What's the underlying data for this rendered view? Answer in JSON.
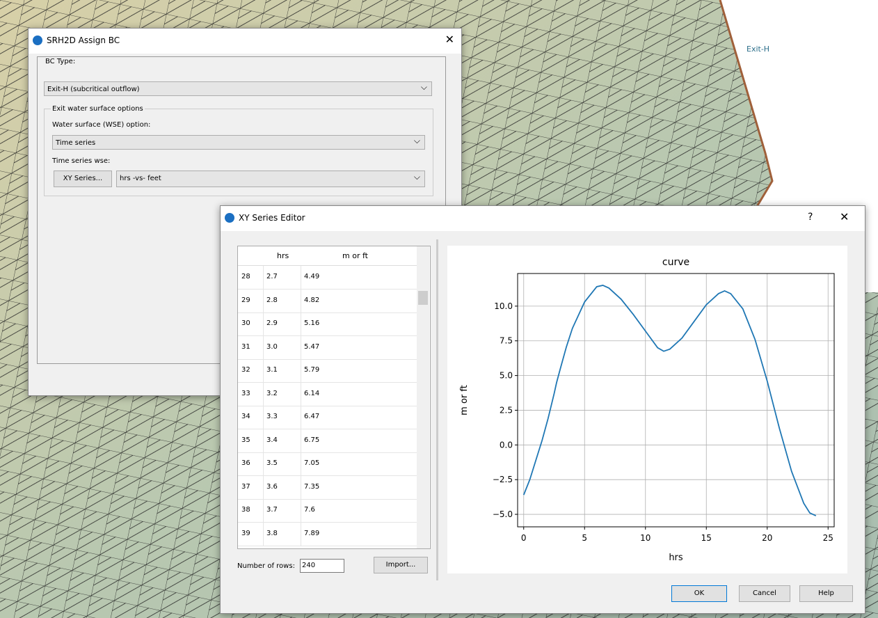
{
  "background": {
    "arc_label": "Exit-H"
  },
  "assign_bc": {
    "title": "SRH2D Assign BC",
    "bc_type_label": "BC Type:",
    "bc_type": "Exit-H (subcritical outflow)",
    "group_title": "Exit water surface options",
    "wse_option_label": "Water surface (WSE) option:",
    "wse_option": "Time series",
    "time_series_label": "Time series wse:",
    "xy_button": "XY Series...",
    "series_choice": "hrs -vs- feet"
  },
  "xy_editor": {
    "title": "XY Series Editor",
    "help_icon": "?",
    "table": {
      "headers": [
        "hrs",
        "m or ft"
      ],
      "rows": [
        [
          "28",
          "2.7",
          "4.49"
        ],
        [
          "29",
          "2.8",
          "4.82"
        ],
        [
          "30",
          "2.9",
          "5.16"
        ],
        [
          "31",
          "3.0",
          "5.47"
        ],
        [
          "32",
          "3.1",
          "5.79"
        ],
        [
          "33",
          "3.2",
          "6.14"
        ],
        [
          "34",
          "3.3",
          "6.47"
        ],
        [
          "35",
          "3.4",
          "6.75"
        ],
        [
          "36",
          "3.5",
          "7.05"
        ],
        [
          "37",
          "3.6",
          "7.35"
        ],
        [
          "38",
          "3.7",
          "7.6"
        ],
        [
          "39",
          "3.8",
          "7.89"
        ]
      ]
    },
    "rows_label": "Number of rows:",
    "rows_count": "240",
    "import_button": "Import...",
    "ok_button": "OK",
    "cancel_button": "Cancel",
    "help_button": "Help"
  },
  "chart_data": {
    "type": "line",
    "title": "curve",
    "x_label": "hrs",
    "y_label": "m or ft",
    "x": [
      0,
      0.5,
      1,
      1.5,
      2,
      2.5,
      2.7,
      3,
      3.5,
      4,
      5,
      6,
      6.5,
      7,
      8,
      9,
      10,
      11,
      11.5,
      12,
      13,
      14,
      15,
      16,
      16.5,
      17,
      18,
      19,
      20,
      21,
      22,
      23,
      23.5,
      24
    ],
    "series": [
      {
        "color": "#1f77b4",
        "values": [
          -3.6,
          -2.5,
          -1.1,
          0.3,
          1.9,
          3.7,
          4.49,
          5.47,
          7.05,
          8.4,
          10.3,
          11.4,
          11.5,
          11.3,
          10.5,
          9.4,
          8.2,
          7.0,
          6.75,
          6.9,
          7.7,
          8.9,
          10.1,
          10.9,
          11.1,
          10.9,
          9.8,
          7.6,
          4.6,
          1.2,
          -1.9,
          -4.2,
          -4.9,
          -5.1
        ]
      }
    ],
    "xlim": [
      -0.5,
      25.5
    ],
    "ylim": [
      -5.9,
      12.35
    ],
    "xticks": [
      0,
      5,
      10,
      15,
      20,
      25
    ],
    "yticks": [
      {
        "value": -5,
        "label": "−5.0"
      },
      {
        "value": -2.5,
        "label": "−2.5"
      },
      {
        "value": 0,
        "label": "0.0"
      },
      {
        "value": 2.5,
        "label": "2.5"
      },
      {
        "value": 5,
        "label": "5.0"
      },
      {
        "value": 7.5,
        "label": "7.5"
      },
      {
        "value": 10,
        "label": "10.0"
      }
    ],
    "grid": true
  }
}
